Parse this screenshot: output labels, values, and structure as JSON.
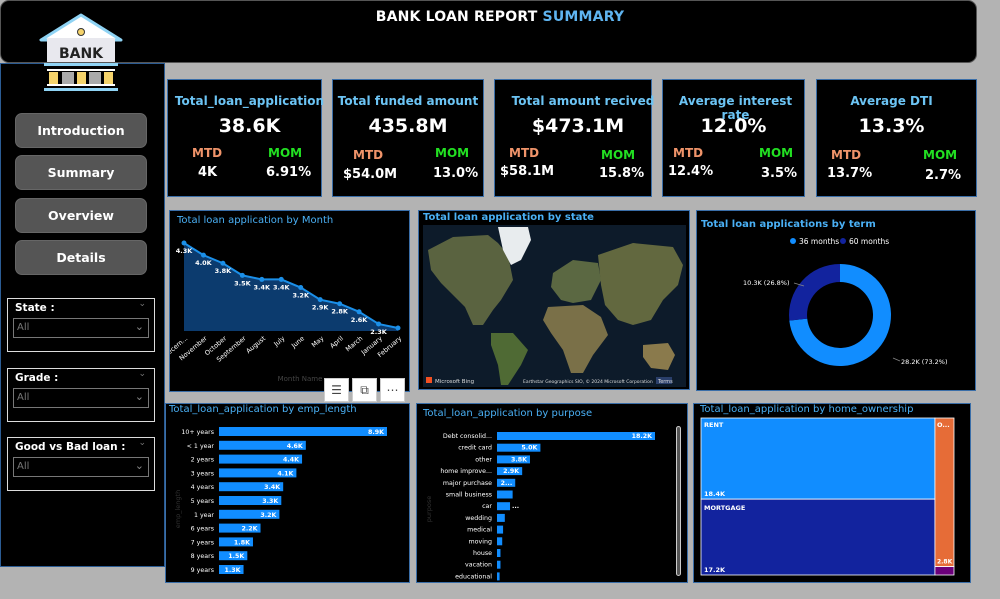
{
  "header": {
    "title_main": "BANK LOAN REPORT",
    "title_accent": "SUMMARY"
  },
  "sidebar": {
    "logo_text": "BANK",
    "nav": [
      {
        "label": "Introduction"
      },
      {
        "label": "Summary"
      },
      {
        "label": "Overview"
      },
      {
        "label": "Details"
      }
    ],
    "slicers": [
      {
        "label": "State :",
        "value": "All"
      },
      {
        "label": "Grade :",
        "value": "All"
      },
      {
        "label": "Good vs Bad loan :",
        "value": "All"
      }
    ]
  },
  "kpis": [
    {
      "title": "Total_loan_application",
      "value": "38.6K",
      "mtd_label": "MTD",
      "mtd": "4K",
      "mom_label": "MOM",
      "mom": "6.91%"
    },
    {
      "title": "Total funded amount",
      "value": "435.8M",
      "mtd_label": "MTD",
      "mtd": "$54.0M",
      "mom_label": "MOM",
      "mom": "13.0%"
    },
    {
      "title": "Total amount recived",
      "value": "$473.1M",
      "mtd_label": "MTD",
      "mtd": "$58.1M",
      "mom_label": "MOM",
      "mom": "15.8%"
    },
    {
      "title": "Average interest rate",
      "value": "12.0%",
      "mtd_label": "MTD",
      "mtd": "12.4%",
      "mom_label": "MOM",
      "mom": "3.5%"
    },
    {
      "title": "Average DTI",
      "value": "13.3%",
      "mtd_label": "MTD",
      "mtd": "13.7%",
      "mom_label": "MOM",
      "mom": "2.7%"
    }
  ],
  "colors": {
    "accent_blue": "#118dff",
    "dark_blue": "#12239e",
    "orange": "#e66c37",
    "purple": "#6b007b",
    "title_blue": "#4ab0f5",
    "mtd_orange": "#f0946a",
    "mom_green": "#22e022"
  },
  "visual_toolbar": {
    "filter_icon": "filter-icon",
    "focus_icon": "focus-mode-icon",
    "more_icon": "more-options-icon"
  },
  "map": {
    "title": "Total loan application by state",
    "logo_text": "Microsoft Bing",
    "attribution": "Earthstar Geographics SIO, © 2024 Microsoft Corporation",
    "terms": "Terms"
  },
  "chart_data": [
    {
      "type": "area",
      "title": "Total loan application by Month",
      "xlabel": "Month Name",
      "ylabel": "",
      "categories": [
        "Decem...",
        "November",
        "October",
        "September",
        "August",
        "July",
        "June",
        "May",
        "April",
        "March",
        "January",
        "February"
      ],
      "values": [
        4.3,
        4.0,
        3.8,
        3.5,
        3.4,
        3.4,
        3.2,
        2.9,
        2.8,
        2.6,
        2.3,
        2.2
      ],
      "labels": [
        "4.3K",
        "4.0K",
        "3.8K",
        "3.5K",
        "3.4K",
        "3.4K",
        "3.2K",
        "2.9K",
        "2.8K",
        "2.6K",
        "2.3K",
        ""
      ],
      "unit": "K"
    },
    {
      "type": "pie",
      "title": "Total loan applications by term",
      "legend": [
        "36 months",
        "60 months"
      ],
      "legend_position": "top-center",
      "series": [
        {
          "name": "36 months",
          "value": 28.2,
          "percent": 73.2,
          "label": "28.2K (73.2%)"
        },
        {
          "name": "60 months",
          "value": 10.3,
          "percent": 26.8,
          "label": "10.3K (26.8%)"
        }
      ]
    },
    {
      "type": "bar",
      "orientation": "horizontal",
      "title": "Total_loan_application by emp_length",
      "ylabel": "emp_length",
      "categories": [
        "10+ years",
        "< 1 year",
        "2 years",
        "3 years",
        "4 years",
        "5 years",
        "1 year",
        "6 years",
        "7 years",
        "8 years",
        "9 years"
      ],
      "values": [
        8.9,
        4.6,
        4.4,
        4.1,
        3.4,
        3.3,
        3.2,
        2.2,
        1.8,
        1.5,
        1.3
      ],
      "labels": [
        "8.9K",
        "4.6K",
        "4.4K",
        "4.1K",
        "3.4K",
        "3.3K",
        "3.2K",
        "2.2K",
        "1.8K",
        "1.5K",
        "1.3K"
      ]
    },
    {
      "type": "bar",
      "orientation": "horizontal",
      "title": "Total_loan_application by purpose",
      "ylabel": "purpose",
      "categories": [
        "Debt consolid...",
        "credit card",
        "other",
        "home improve...",
        "major purchase",
        "small business",
        "car",
        "wedding",
        "medical",
        "moving",
        "house",
        "vacation",
        "educational"
      ],
      "values": [
        18.2,
        5.0,
        3.8,
        2.9,
        2.1,
        1.8,
        1.5,
        0.9,
        0.7,
        0.6,
        0.4,
        0.4,
        0.3
      ],
      "labels": [
        "18.2K",
        "5.0K",
        "3.8K",
        "2.9K",
        "2...",
        "",
        "...",
        "",
        "",
        "",
        "",
        "",
        ""
      ]
    },
    {
      "type": "treemap",
      "title": "Total_loan_application by home_ownership",
      "series": [
        {
          "name": "RENT",
          "value": 18.4,
          "label": "18.4K"
        },
        {
          "name": "MORTGAGE",
          "value": 17.2,
          "label": "17.2K"
        },
        {
          "name": "O...",
          "value": 2.8,
          "label": "2.8K"
        },
        {
          "name": "",
          "value": 0.1,
          "label": ""
        }
      ]
    }
  ]
}
